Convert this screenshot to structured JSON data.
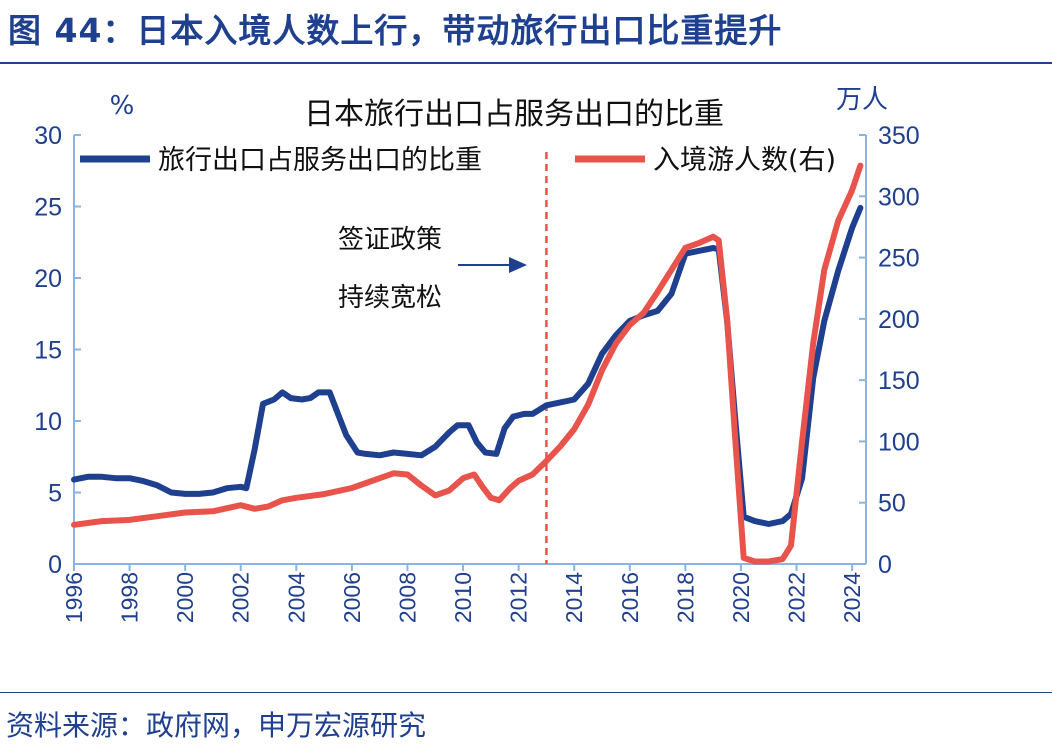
{
  "figure": {
    "title": "图 44：日本入境人数上行，带动旅行出口比重提升",
    "source": "资料来源：政府网，申万宏源研究"
  },
  "colors": {
    "navy": "#1f3f8f",
    "red": "#e8534b",
    "axis": "#8ab4e6"
  },
  "chart_data": {
    "type": "line",
    "title": "日本旅行出口占服务出口的比重",
    "y_left_unit": "%",
    "y_right_unit": "万人",
    "ylim_left": [
      0,
      30
    ],
    "ylim_right": [
      0,
      350
    ],
    "yticks_left": [
      "0",
      "5",
      "10",
      "15",
      "20",
      "25",
      "30"
    ],
    "yticks_right": [
      "0",
      "50",
      "100",
      "150",
      "200",
      "250",
      "300",
      "350"
    ],
    "x_range": [
      1996,
      2024.5
    ],
    "xticks": [
      "1996",
      "1998",
      "2000",
      "2002",
      "2004",
      "2006",
      "2008",
      "2010",
      "2012",
      "2014",
      "2016",
      "2018",
      "2020",
      "2022",
      "2024"
    ],
    "grid": false,
    "legend_position": "top",
    "annotation": {
      "lines": [
        "签证政策",
        "持续宽松"
      ],
      "marker_year": 2013
    },
    "series": [
      {
        "name": "旅行出口占服务出口的比重",
        "axis": "left",
        "color": "#1f3f8f",
        "points": [
          [
            1996,
            5.9
          ],
          [
            1996.5,
            6.1
          ],
          [
            1997,
            6.1
          ],
          [
            1997.5,
            6.0
          ],
          [
            1998,
            6.0
          ],
          [
            1998.5,
            5.8
          ],
          [
            1999,
            5.5
          ],
          [
            1999.5,
            5.0
          ],
          [
            2000,
            4.9
          ],
          [
            2000.5,
            4.9
          ],
          [
            2001,
            5.0
          ],
          [
            2001.5,
            5.3
          ],
          [
            2002,
            5.4
          ],
          [
            2002.2,
            5.3
          ],
          [
            2002.5,
            8.0
          ],
          [
            2002.8,
            11.2
          ],
          [
            2003.2,
            11.5
          ],
          [
            2003.5,
            12.0
          ],
          [
            2003.8,
            11.6
          ],
          [
            2004.2,
            11.5
          ],
          [
            2004.5,
            11.6
          ],
          [
            2004.8,
            12.0
          ],
          [
            2005.2,
            12.0
          ],
          [
            2005.5,
            10.5
          ],
          [
            2005.8,
            9.0
          ],
          [
            2006.2,
            7.8
          ],
          [
            2006.5,
            7.7
          ],
          [
            2007,
            7.6
          ],
          [
            2007.5,
            7.8
          ],
          [
            2008,
            7.7
          ],
          [
            2008.5,
            7.6
          ],
          [
            2009,
            8.2
          ],
          [
            2009.5,
            9.2
          ],
          [
            2009.8,
            9.7
          ],
          [
            2010.2,
            9.7
          ],
          [
            2010.5,
            8.5
          ],
          [
            2010.8,
            7.8
          ],
          [
            2011.2,
            7.7
          ],
          [
            2011.5,
            9.5
          ],
          [
            2011.8,
            10.3
          ],
          [
            2012.2,
            10.5
          ],
          [
            2012.5,
            10.5
          ],
          [
            2013,
            11.1
          ],
          [
            2013.5,
            11.3
          ],
          [
            2014,
            11.5
          ],
          [
            2014.5,
            12.6
          ],
          [
            2015,
            14.7
          ],
          [
            2015.5,
            16.0
          ],
          [
            2016,
            17.0
          ],
          [
            2016.5,
            17.4
          ],
          [
            2017,
            17.7
          ],
          [
            2017.5,
            18.9
          ],
          [
            2018,
            21.7
          ],
          [
            2018.5,
            21.9
          ],
          [
            2019,
            22.1
          ],
          [
            2019.2,
            22.0
          ],
          [
            2019.5,
            17.0
          ],
          [
            2019.8,
            10.0
          ],
          [
            2020.1,
            3.3
          ],
          [
            2020.5,
            3.0
          ],
          [
            2021,
            2.8
          ],
          [
            2021.5,
            3.0
          ],
          [
            2021.8,
            3.5
          ],
          [
            2022.2,
            6.0
          ],
          [
            2022.6,
            13.0
          ],
          [
            2023,
            17.0
          ],
          [
            2023.5,
            20.5
          ],
          [
            2024,
            23.5
          ],
          [
            2024.3,
            24.9
          ]
        ]
      },
      {
        "name": "入境游人数(右)",
        "axis": "right",
        "color": "#e8534b",
        "points": [
          [
            1996,
            32
          ],
          [
            1997,
            35
          ],
          [
            1998,
            36
          ],
          [
            1999,
            39
          ],
          [
            2000,
            42
          ],
          [
            2001,
            43
          ],
          [
            2002,
            48
          ],
          [
            2002.5,
            45
          ],
          [
            2003,
            47
          ],
          [
            2003.5,
            52
          ],
          [
            2004,
            54
          ],
          [
            2005,
            57
          ],
          [
            2006,
            62
          ],
          [
            2007,
            70
          ],
          [
            2007.5,
            74
          ],
          [
            2008,
            73
          ],
          [
            2008.5,
            64
          ],
          [
            2009,
            56
          ],
          [
            2009.5,
            60
          ],
          [
            2010,
            70
          ],
          [
            2010.4,
            73
          ],
          [
            2010.7,
            63
          ],
          [
            2011,
            54
          ],
          [
            2011.3,
            52
          ],
          [
            2011.7,
            62
          ],
          [
            2012,
            68
          ],
          [
            2012.5,
            73
          ],
          [
            2013,
            84
          ],
          [
            2013.5,
            96
          ],
          [
            2014,
            110
          ],
          [
            2014.5,
            130
          ],
          [
            2015,
            158
          ],
          [
            2015.5,
            180
          ],
          [
            2016,
            195
          ],
          [
            2016.5,
            205
          ],
          [
            2017,
            222
          ],
          [
            2017.5,
            240
          ],
          [
            2018,
            258
          ],
          [
            2018.5,
            262
          ],
          [
            2019,
            267
          ],
          [
            2019.2,
            264
          ],
          [
            2019.5,
            200
          ],
          [
            2019.8,
            100
          ],
          [
            2020.1,
            5
          ],
          [
            2020.5,
            2
          ],
          [
            2021,
            2
          ],
          [
            2021.5,
            4
          ],
          [
            2021.8,
            15
          ],
          [
            2022.2,
            100
          ],
          [
            2022.6,
            180
          ],
          [
            2023,
            240
          ],
          [
            2023.5,
            280
          ],
          [
            2024,
            305
          ],
          [
            2024.3,
            325
          ]
        ]
      }
    ]
  }
}
